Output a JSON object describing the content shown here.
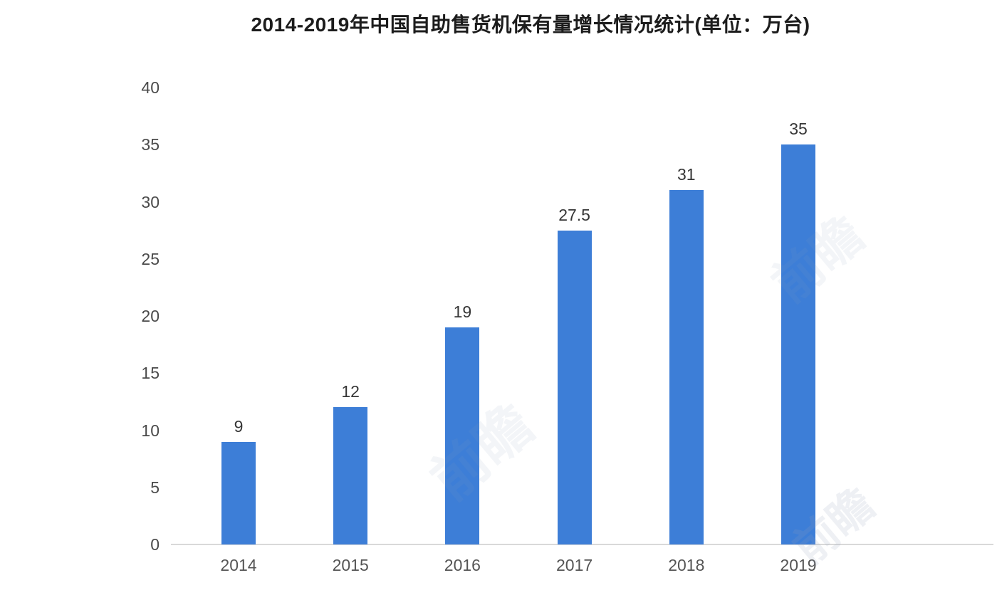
{
  "page": {
    "background": "#ffffff"
  },
  "chart_data": {
    "type": "bar",
    "title": "2014-2019年中国自助售货机保有量增长情况统计(单位：万台)",
    "unit_label": "万台",
    "categories": [
      "2014",
      "2015",
      "2016",
      "2017",
      "2018",
      "2019"
    ],
    "values": [
      9,
      12,
      19,
      27.5,
      31,
      35
    ],
    "value_labels": [
      "9",
      "12",
      "19",
      "27.5",
      "31",
      "35"
    ],
    "xlabel": "",
    "ylabel": "",
    "ylim": [
      0,
      40
    ],
    "yticks": [
      0,
      5,
      10,
      15,
      20,
      25,
      30,
      35,
      40
    ],
    "grid": false,
    "legend": "none",
    "bar_color": "#3D7ED7",
    "axis_line_color": "#d9d9d9",
    "title_color": "#1c1c1c",
    "tick_label_color": "#4a4a4a",
    "value_label_color": "#363636"
  },
  "watermark": {
    "text": "前瞻"
  }
}
